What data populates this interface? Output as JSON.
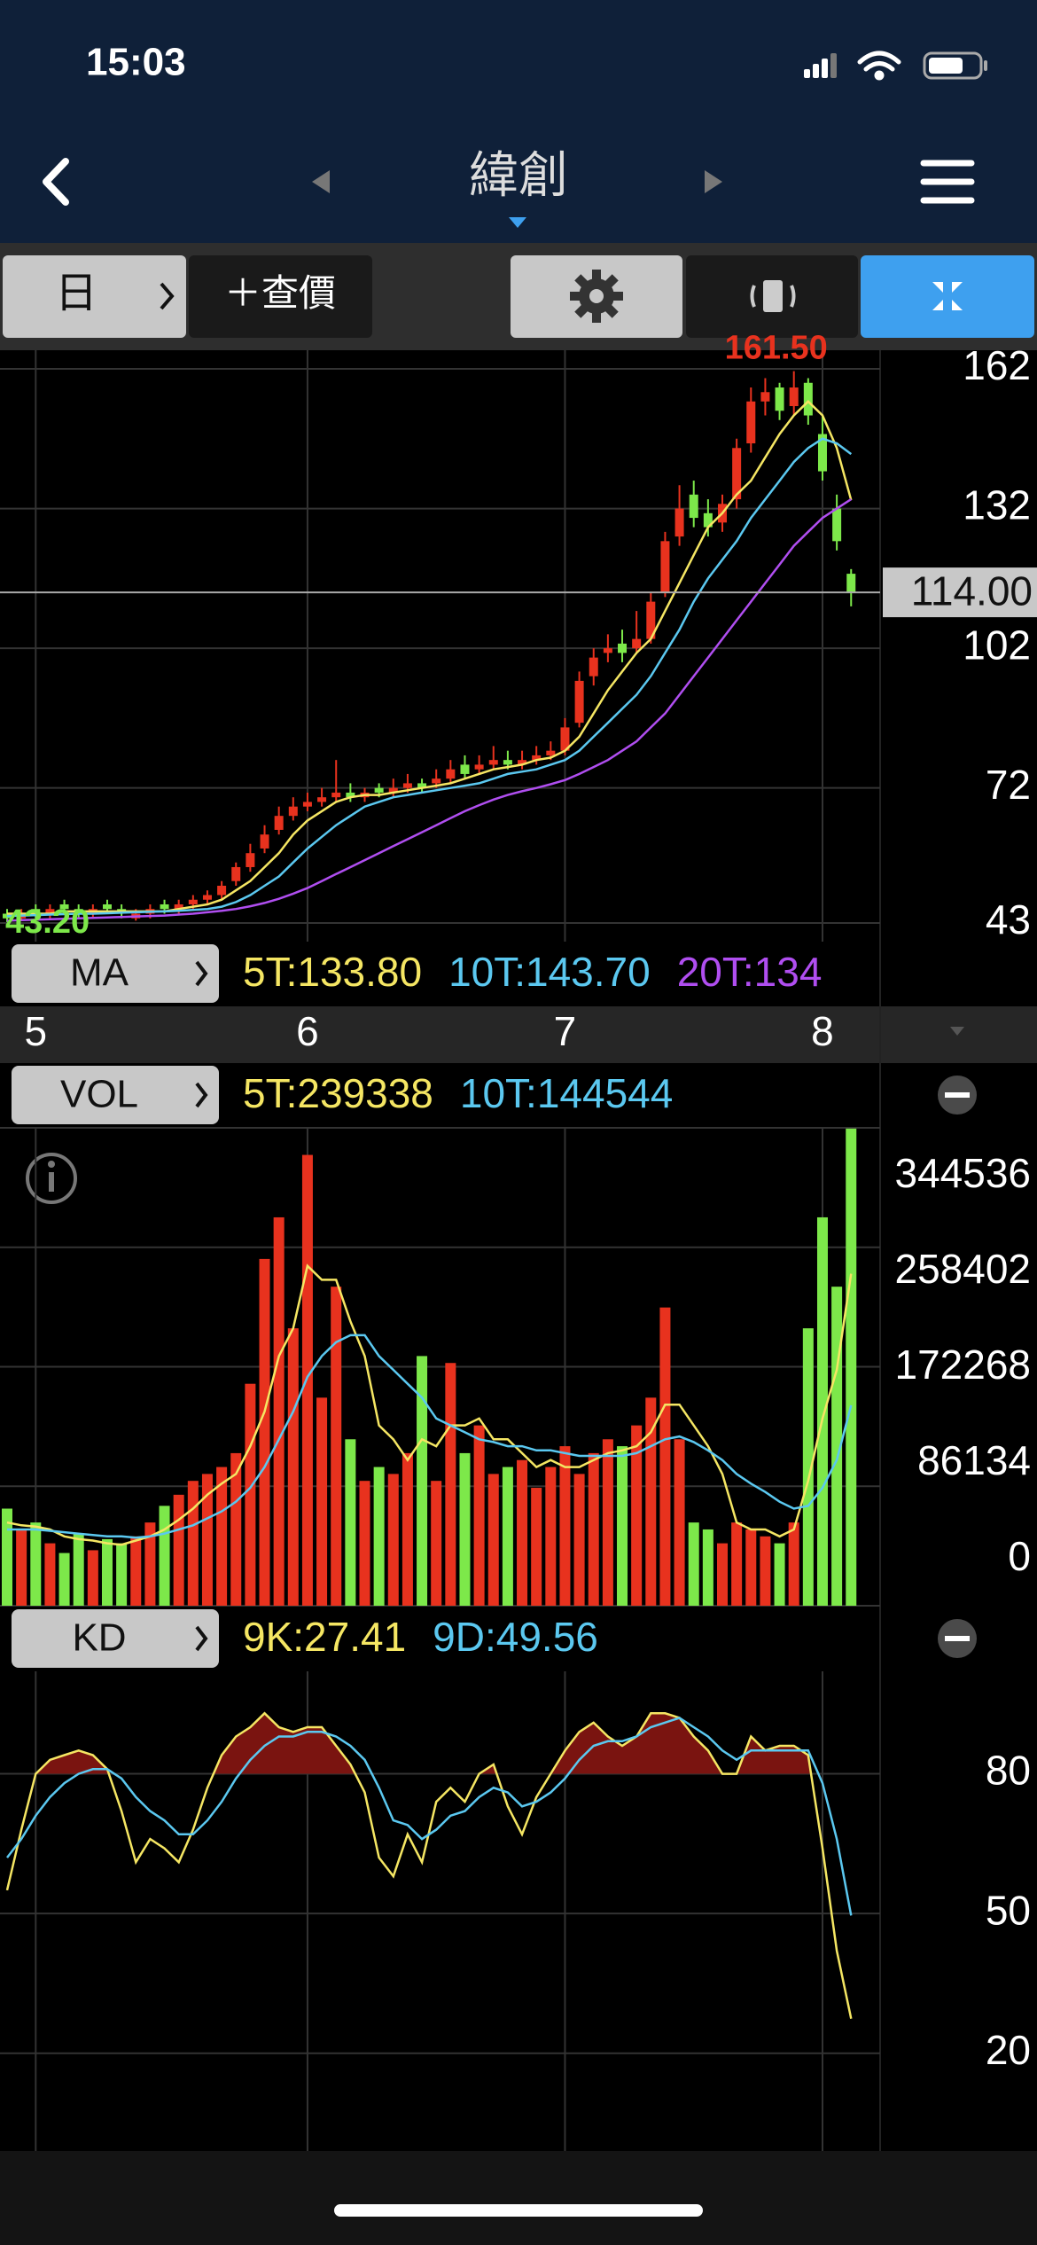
{
  "status_bar": {
    "time": "15:03"
  },
  "nav": {
    "title": "緯創"
  },
  "toolbar": {
    "period": "日",
    "quote": "＋查價"
  },
  "chart_data": [
    {
      "type": "candlestick",
      "indicator": "MA",
      "categories": [
        null,
        null,
        "5",
        null,
        null,
        null,
        null,
        null,
        null,
        null,
        null,
        null,
        null,
        null,
        null,
        null,
        null,
        null,
        null,
        null,
        null,
        "6",
        null,
        null,
        null,
        null,
        null,
        null,
        null,
        null,
        null,
        null,
        null,
        null,
        null,
        null,
        null,
        null,
        null,
        "7",
        null,
        null,
        null,
        null,
        null,
        null,
        null,
        null,
        null,
        null,
        null,
        null,
        null,
        null,
        null,
        null,
        null,
        "8",
        null,
        null
      ],
      "open": [
        45,
        44,
        46,
        45,
        47,
        46,
        45,
        47,
        46,
        44,
        45,
        47,
        46,
        47,
        48,
        49,
        52,
        55,
        59,
        63,
        66,
        68,
        69,
        70,
        71,
        70,
        72,
        71,
        72,
        73,
        73,
        74,
        77,
        76,
        77,
        78,
        77,
        78,
        79,
        80,
        86,
        96,
        101,
        103,
        102,
        104,
        114,
        126,
        135,
        131,
        129,
        134,
        146,
        155,
        158,
        154,
        159,
        148,
        132,
        118
      ],
      "high": [
        46,
        46,
        47,
        47,
        48,
        47,
        47,
        48,
        47,
        46,
        47,
        48,
        48,
        49,
        50,
        52,
        56,
        60,
        64,
        68,
        70,
        71,
        72,
        78,
        73,
        72,
        73,
        74,
        75,
        74,
        76,
        78,
        79,
        79,
        81,
        80,
        80,
        81,
        82,
        87,
        97,
        102,
        105,
        106,
        110,
        114,
        127,
        137,
        138,
        134,
        135,
        147,
        158,
        160,
        159,
        161.5,
        160,
        152,
        135,
        119
      ],
      "low": [
        43.2,
        43.5,
        44,
        44,
        45,
        44,
        44,
        45,
        44,
        43.5,
        44,
        45,
        45,
        46,
        47,
        48,
        51,
        54,
        58,
        62,
        65,
        67,
        68,
        69,
        69,
        69,
        70,
        70,
        71,
        71,
        72,
        73,
        74,
        75,
        76,
        76,
        76,
        77,
        78,
        79,
        85,
        94,
        99,
        99,
        101,
        103,
        113,
        124,
        128,
        126,
        127,
        132,
        144,
        152,
        151,
        152,
        150,
        138,
        123,
        111
      ],
      "close": [
        44,
        45,
        45,
        46,
        46,
        45,
        46,
        46,
        45,
        45,
        46,
        46,
        47,
        48,
        49,
        51,
        55,
        58,
        62,
        66,
        68,
        69,
        70,
        71,
        70,
        71,
        71,
        72,
        73,
        72,
        74,
        76,
        75,
        77,
        78,
        77,
        78,
        79,
        80,
        85,
        95,
        100,
        102,
        101,
        104,
        112,
        125,
        132,
        130,
        128,
        133,
        145,
        155,
        157,
        153,
        158,
        152,
        140,
        125,
        114
      ],
      "up_color": "#e8321e",
      "down_color": "#7de84a",
      "flat_color": "#f5e663",
      "series": [
        {
          "name": "5T:133.80",
          "color": "#f5e663",
          "values": [
            45,
            45,
            45,
            45,
            45.5,
            45.5,
            45.5,
            45.5,
            45.5,
            45.5,
            45.5,
            45.5,
            46,
            46.5,
            47,
            48,
            50,
            52,
            55,
            58,
            62,
            65,
            67,
            69,
            70,
            70.5,
            70.5,
            71,
            71.5,
            72,
            72.5,
            73,
            74,
            75,
            76,
            76.5,
            77,
            78,
            78.5,
            80,
            83,
            88,
            93,
            97,
            101,
            104,
            110,
            116,
            122,
            128,
            131,
            135,
            138,
            143,
            148,
            152,
            155,
            152,
            145,
            133.8
          ]
        },
        {
          "name": "10T:143.70",
          "color": "#5bc8f0",
          "values": [
            44.5,
            44.6,
            44.7,
            44.8,
            44.9,
            45,
            45,
            45.1,
            45.2,
            45.3,
            45.4,
            45.5,
            45.6,
            45.8,
            46,
            46.5,
            47.5,
            49,
            51,
            53,
            56,
            59,
            61.5,
            64,
            66,
            68,
            69,
            70,
            70.5,
            71,
            71.5,
            72,
            72.5,
            73,
            74,
            75,
            75.5,
            76,
            77,
            78,
            80,
            83,
            86,
            89,
            92,
            96,
            101,
            106,
            112,
            117,
            121,
            125,
            130,
            134,
            138,
            142,
            145,
            147,
            146,
            143.7
          ]
        },
        {
          "name": "20T:134",
          "color": "#b04ef0",
          "values": [
            43.5,
            43.6,
            43.7,
            43.8,
            43.9,
            44,
            44.1,
            44.2,
            44.3,
            44.4,
            44.5,
            44.6,
            44.8,
            45,
            45.3,
            45.6,
            46,
            46.6,
            47.3,
            48.2,
            49.3,
            50.5,
            52,
            53.5,
            55,
            56.5,
            58,
            59.5,
            61,
            62.5,
            64,
            65.5,
            67,
            68.3,
            69.5,
            70.5,
            71.3,
            72,
            72.8,
            73.7,
            75,
            76.5,
            78,
            80,
            82,
            85,
            88,
            92,
            96,
            100,
            104,
            108,
            112,
            116,
            120,
            124,
            127,
            130,
            132,
            134
          ]
        }
      ],
      "ylim": [
        39,
        166
      ],
      "yticks": [
        162,
        132,
        102,
        72,
        43
      ],
      "grid": true,
      "last_price": {
        "value": 114,
        "label": "114.00"
      },
      "max_label": {
        "value": 161.5,
        "label": "161.50"
      },
      "min_label": {
        "value": 43.2,
        "label": "43.20"
      }
    },
    {
      "type": "bar",
      "indicator": "VOL",
      "values": [
        70000,
        55000,
        60000,
        45000,
        38000,
        52000,
        40000,
        48000,
        45000,
        50000,
        60000,
        72000,
        80000,
        90000,
        95000,
        100000,
        110000,
        160000,
        250000,
        280000,
        200000,
        325000,
        150000,
        230000,
        120000,
        90000,
        100000,
        95000,
        110000,
        180000,
        90000,
        175000,
        110000,
        130000,
        95000,
        100000,
        105000,
        85000,
        100000,
        115000,
        95000,
        110000,
        120000,
        115000,
        130000,
        150000,
        215000,
        120000,
        60000,
        55000,
        45000,
        60000,
        55000,
        50000,
        45000,
        60000,
        200000,
        280000,
        230000,
        344000
      ],
      "series": [
        {
          "name": "5T:239338",
          "color": "#f5e663",
          "values": [
            60000,
            58000,
            57000,
            55000,
            50000,
            48000,
            47000,
            45000,
            44000,
            47000,
            50000,
            55000,
            62000,
            70000,
            80000,
            88000,
            95000,
            115000,
            140000,
            180000,
            200000,
            245000,
            235000,
            235000,
            205000,
            180000,
            130000,
            120000,
            105000,
            120000,
            115000,
            130000,
            130000,
            135000,
            120000,
            120000,
            110000,
            100000,
            105000,
            100000,
            100000,
            105000,
            110000,
            112000,
            115000,
            125000,
            145000,
            145000,
            130000,
            115000,
            95000,
            60000,
            55000,
            55000,
            50000,
            55000,
            90000,
            135000,
            170000,
            239338
          ]
        },
        {
          "name": "10T:144544",
          "color": "#5bc8f0",
          "values": [
            55000,
            55000,
            55000,
            54000,
            53000,
            52000,
            51000,
            50000,
            50000,
            49000,
            50000,
            52000,
            55000,
            58000,
            63000,
            68000,
            75000,
            85000,
            100000,
            120000,
            140000,
            165000,
            180000,
            190000,
            195000,
            195000,
            180000,
            170000,
            160000,
            150000,
            135000,
            130000,
            125000,
            120000,
            118000,
            115000,
            115000,
            112000,
            112000,
            110000,
            108000,
            108000,
            108000,
            108000,
            110000,
            115000,
            120000,
            122000,
            118000,
            112000,
            105000,
            95000,
            88000,
            82000,
            75000,
            70000,
            72000,
            85000,
            105000,
            144544
          ]
        }
      ],
      "ylim": [
        0,
        344536
      ],
      "yticks": [
        0,
        86134,
        172268,
        258402,
        344536
      ],
      "grid": true
    },
    {
      "type": "line",
      "indicator": "KD",
      "series": [
        {
          "name": "9K:27.41",
          "color": "#f5e663",
          "values": [
            55,
            68,
            80,
            83,
            84,
            85,
            84,
            81,
            72,
            61,
            66,
            64,
            61,
            68,
            77,
            84,
            88,
            90,
            93,
            90,
            89,
            90,
            90,
            86,
            82,
            76,
            62,
            58,
            67,
            61,
            74,
            77,
            74,
            80,
            82,
            73,
            67,
            75,
            80,
            85,
            89,
            91,
            88,
            86,
            88,
            93,
            93,
            92,
            88,
            85,
            80,
            80,
            88,
            85,
            86,
            86,
            84,
            64,
            42,
            27.41
          ]
        },
        {
          "name": "9D:49.56",
          "color": "#5bc8f0",
          "values": [
            62,
            66,
            71,
            75,
            78,
            80,
            81,
            81,
            79,
            75,
            72,
            70,
            67,
            67,
            70,
            74,
            79,
            83,
            86,
            88,
            88,
            89,
            89,
            88,
            86,
            83,
            77,
            70,
            69,
            66,
            68,
            71,
            72,
            75,
            77,
            76,
            73,
            74,
            76,
            79,
            83,
            86,
            87,
            87,
            88,
            90,
            91,
            92,
            90,
            88,
            85,
            83,
            85,
            85,
            85,
            85,
            85,
            78,
            66,
            49.56
          ]
        }
      ],
      "fill_above": 80,
      "fill_color": "#7a1410",
      "ylim": [
        -1,
        102
      ],
      "yticks": [
        80,
        50,
        20
      ],
      "grid": true
    }
  ]
}
